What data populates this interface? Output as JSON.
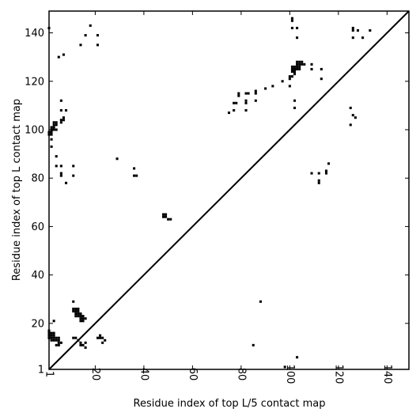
{
  "chart_data": {
    "type": "scatter",
    "title": "",
    "xlabel": "Residue index of top L/5 contact map",
    "ylabel": "Residue index of top L contact map",
    "xlim": [
      1,
      149
    ],
    "ylim": [
      1,
      149
    ],
    "xticks": [
      1,
      20,
      40,
      60,
      80,
      100,
      120,
      140
    ],
    "yticks": [
      1,
      20,
      40,
      60,
      80,
      100,
      120,
      140
    ],
    "xtick_labels": [
      "1",
      "20",
      "40",
      "60",
      "80",
      "100",
      "120",
      "140"
    ],
    "ytick_labels": [
      "1",
      "20",
      "40",
      "60",
      "80",
      "100",
      "120",
      "140"
    ],
    "diagonal": true,
    "grid": false,
    "marker_color": "#000000",
    "series": [
      {
        "values_upper_left": [
          [
            1,
            142
          ],
          [
            1,
            98
          ],
          [
            1,
            99
          ],
          [
            2,
            98
          ],
          [
            2,
            99
          ],
          [
            2,
            100
          ],
          [
            2,
            101
          ],
          [
            3,
            100
          ],
          [
            3,
            101
          ],
          [
            3,
            102
          ],
          [
            3,
            103
          ],
          [
            4,
            100
          ],
          [
            4,
            102
          ],
          [
            4,
            103
          ],
          [
            2,
            96
          ],
          [
            2,
            93
          ],
          [
            4,
            89
          ],
          [
            4,
            85
          ],
          [
            5,
            130
          ],
          [
            6,
            112
          ],
          [
            6,
            108
          ],
          [
            6,
            104
          ],
          [
            6,
            103
          ],
          [
            6,
            85
          ],
          [
            6,
            82
          ],
          [
            6,
            81
          ],
          [
            7,
            104
          ],
          [
            7,
            105
          ],
          [
            7,
            131
          ],
          [
            8,
            108
          ],
          [
            8,
            78
          ],
          [
            11,
            85
          ],
          [
            11,
            81
          ],
          [
            14,
            135
          ],
          [
            16,
            139
          ],
          [
            18,
            143
          ],
          [
            21,
            139
          ],
          [
            21,
            135
          ],
          [
            29,
            88
          ],
          [
            36,
            84
          ],
          [
            36,
            81
          ],
          [
            37,
            81
          ],
          [
            48,
            64
          ],
          [
            48,
            65
          ],
          [
            49,
            64
          ],
          [
            49,
            65
          ],
          [
            50,
            63
          ],
          [
            51,
            63
          ],
          [
            75,
            107
          ],
          [
            77,
            108
          ],
          [
            77,
            111
          ],
          [
            78,
            111
          ],
          [
            79,
            114
          ],
          [
            79,
            115
          ],
          [
            82,
            108
          ],
          [
            82,
            111
          ],
          [
            82,
            112
          ],
          [
            82,
            115
          ],
          [
            83,
            115
          ],
          [
            86,
            112
          ],
          [
            86,
            115
          ],
          [
            86,
            116
          ],
          [
            90,
            117
          ],
          [
            93,
            118
          ],
          [
            97,
            120
          ],
          [
            100,
            118
          ],
          [
            100,
            121
          ],
          [
            100,
            122
          ],
          [
            101,
            122
          ],
          [
            101,
            124
          ],
          [
            101,
            125
          ],
          [
            101,
            126
          ],
          [
            102,
            123
          ],
          [
            102,
            124
          ],
          [
            102,
            125
          ],
          [
            102,
            126
          ],
          [
            103,
            125
          ],
          [
            103,
            126
          ],
          [
            103,
            127
          ],
          [
            103,
            128
          ],
          [
            104,
            125
          ],
          [
            104,
            126
          ],
          [
            104,
            127
          ],
          [
            104,
            128
          ],
          [
            105,
            127
          ],
          [
            105,
            128
          ],
          [
            106,
            127
          ],
          [
            101,
            142
          ],
          [
            101,
            145
          ],
          [
            101,
            146
          ],
          [
            102,
            109
          ],
          [
            102,
            112
          ],
          [
            103,
            138
          ],
          [
            103,
            142
          ],
          [
            109,
            125
          ],
          [
            109,
            127
          ],
          [
            113,
            121
          ],
          [
            113,
            125
          ],
          [
            125,
            102
          ],
          [
            125,
            109
          ],
          [
            126,
            106
          ],
          [
            126,
            138
          ],
          [
            126,
            141
          ],
          [
            126,
            142
          ],
          [
            127,
            105
          ],
          [
            128,
            141
          ],
          [
            130,
            138
          ],
          [
            133,
            141
          ]
        ],
        "values_lower_right": [
          [
            1,
            14
          ],
          [
            1,
            15
          ],
          [
            1,
            16
          ],
          [
            1,
            17
          ],
          [
            2,
            13
          ],
          [
            2,
            14
          ],
          [
            2,
            15
          ],
          [
            2,
            16
          ],
          [
            3,
            13
          ],
          [
            3,
            14
          ],
          [
            3,
            15
          ],
          [
            3,
            16
          ],
          [
            4,
            11
          ],
          [
            4,
            13
          ],
          [
            4,
            14
          ],
          [
            5,
            11
          ],
          [
            5,
            12
          ],
          [
            5,
            13
          ],
          [
            5,
            14
          ],
          [
            6,
            12
          ],
          [
            3,
            21
          ],
          [
            11,
            29
          ],
          [
            11,
            14
          ],
          [
            12,
            14
          ],
          [
            11,
            25
          ],
          [
            11,
            26
          ],
          [
            12,
            23
          ],
          [
            12,
            24
          ],
          [
            12,
            25
          ],
          [
            12,
            26
          ],
          [
            13,
            23
          ],
          [
            13,
            24
          ],
          [
            13,
            25
          ],
          [
            13,
            26
          ],
          [
            14,
            21
          ],
          [
            14,
            22
          ],
          [
            14,
            23
          ],
          [
            14,
            24
          ],
          [
            15,
            21
          ],
          [
            15,
            22
          ],
          [
            15,
            23
          ],
          [
            16,
            22
          ],
          [
            13,
            13
          ],
          [
            14,
            12
          ],
          [
            14,
            11
          ],
          [
            15,
            11
          ],
          [
            16,
            12
          ],
          [
            16,
            10
          ],
          [
            21,
            14
          ],
          [
            22,
            14
          ],
          [
            22,
            15
          ],
          [
            23,
            12
          ],
          [
            23,
            14
          ],
          [
            24,
            13
          ],
          [
            85,
            11
          ],
          [
            88,
            29
          ],
          [
            98,
            2
          ],
          [
            103,
            6
          ],
          [
            109,
            82
          ],
          [
            112,
            82
          ],
          [
            112,
            79
          ],
          [
            112,
            78
          ],
          [
            115,
            82
          ],
          [
            115,
            83
          ],
          [
            116,
            86
          ]
        ]
      }
    ]
  }
}
